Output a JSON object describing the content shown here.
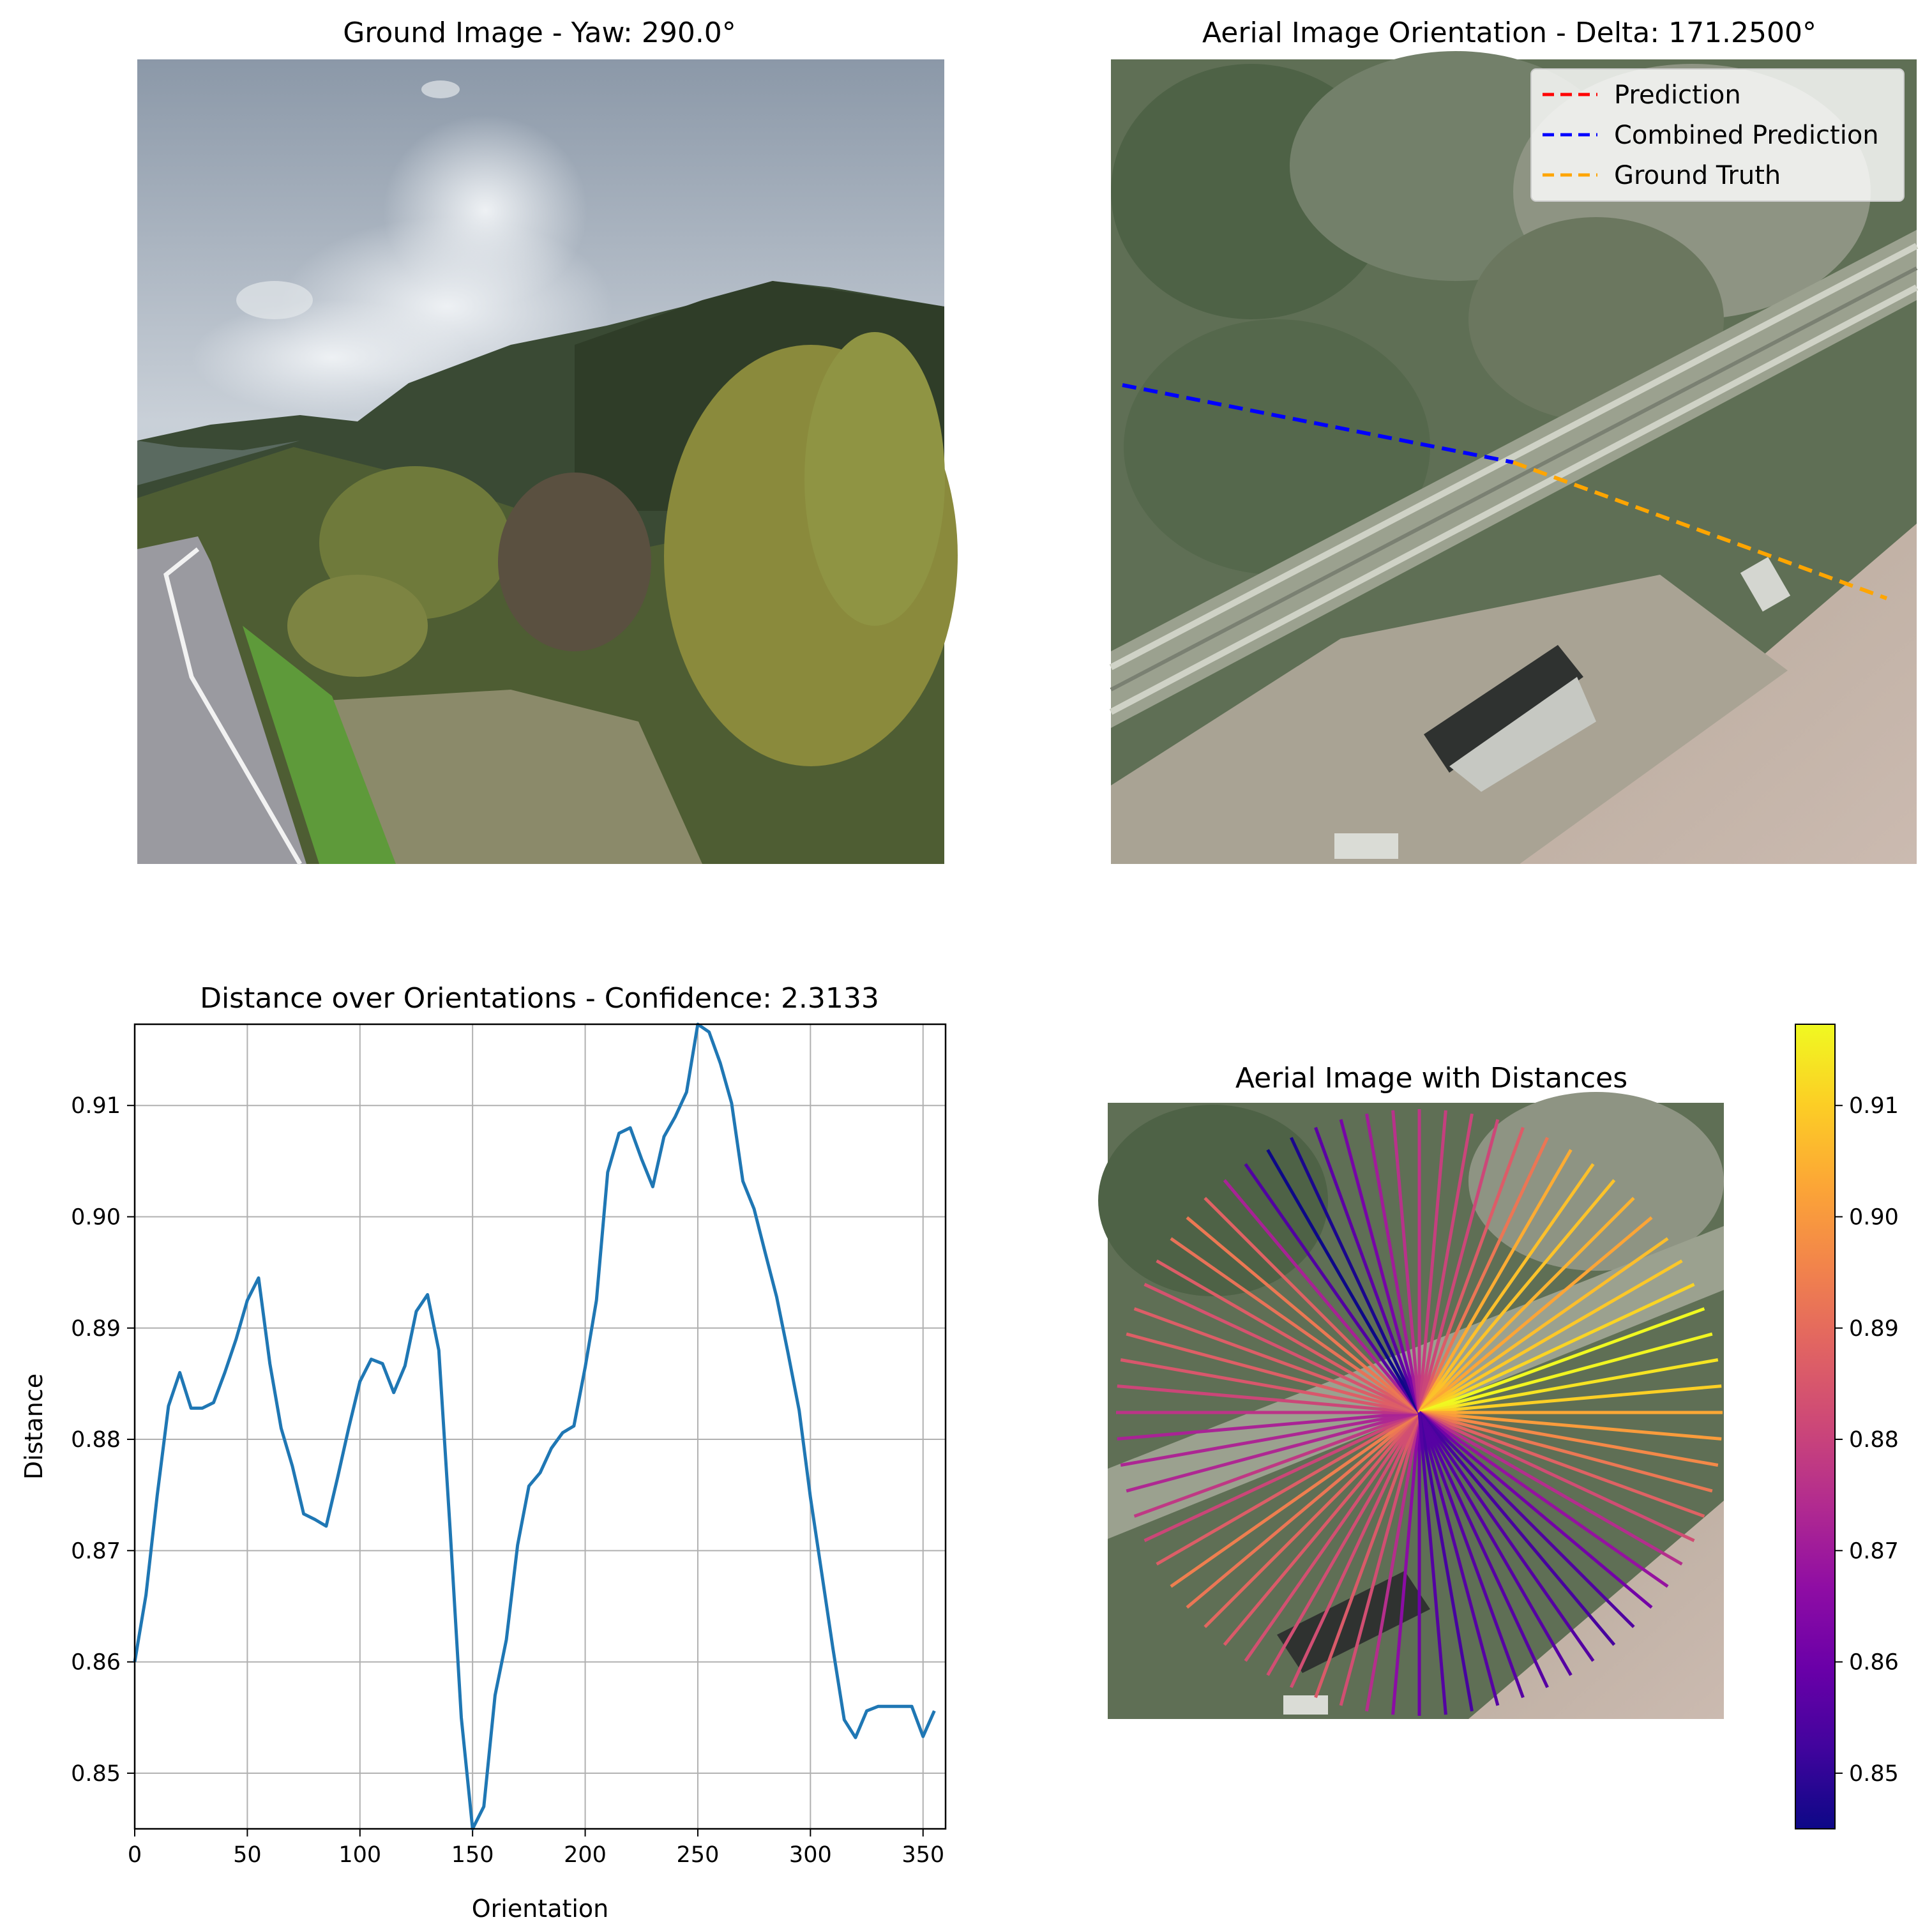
{
  "panels": {
    "ground": {
      "title": "Ground Image - Yaw: 290.0°"
    },
    "aerial": {
      "title": "Aerial Image Orientation - Delta: 171.2500°",
      "legend": [
        {
          "label": "Prediction",
          "color": "#ff0000"
        },
        {
          "label": "Combined Prediction",
          "color": "#0000ff"
        },
        {
          "label": "Ground Truth",
          "color": "#ffa500"
        }
      ]
    },
    "distances": {
      "title": "Aerial Image with Distances"
    }
  },
  "chart_data": [
    {
      "type": "line",
      "title": "Distance over Orientations - Confidence: 2.3133",
      "xlabel": "Orientation",
      "ylabel": "Distance",
      "xlim": [
        0,
        360
      ],
      "ylim": [
        0.845,
        0.9173
      ],
      "xticks": [
        "0",
        "50",
        "100",
        "150",
        "200",
        "250",
        "300",
        "350"
      ],
      "yticks": [
        "0.85",
        "0.86",
        "0.87",
        "0.88",
        "0.89",
        "0.90",
        "0.91"
      ],
      "grid": true,
      "color": "#1f77b4",
      "x": [
        0,
        5,
        10,
        15,
        20,
        25,
        30,
        35,
        40,
        45,
        50,
        55,
        60,
        65,
        70,
        75,
        80,
        85,
        90,
        95,
        100,
        105,
        110,
        115,
        120,
        125,
        130,
        135,
        140,
        145,
        150,
        155,
        160,
        165,
        170,
        175,
        180,
        185,
        190,
        195,
        200,
        205,
        210,
        215,
        220,
        225,
        230,
        235,
        240,
        245,
        250,
        255,
        260,
        265,
        270,
        275,
        280,
        285,
        290,
        295,
        300,
        305,
        310,
        315,
        320,
        325,
        330,
        335,
        340,
        345,
        350,
        355
      ],
      "y": [
        0.86,
        0.866,
        0.875,
        0.883,
        0.886,
        0.8828,
        0.8828,
        0.8833,
        0.886,
        0.889,
        0.8925,
        0.8945,
        0.8868,
        0.881,
        0.8776,
        0.8733,
        0.8728,
        0.8722,
        0.8765,
        0.881,
        0.8852,
        0.8872,
        0.8868,
        0.8842,
        0.8866,
        0.8915,
        0.893,
        0.888,
        0.872,
        0.855,
        0.845,
        0.847,
        0.857,
        0.862,
        0.8705,
        0.8758,
        0.877,
        0.8792,
        0.8806,
        0.8812,
        0.8865,
        0.8925,
        0.904,
        0.9075,
        0.908,
        0.9052,
        0.9027,
        0.9072,
        0.909,
        0.9112,
        0.9173,
        0.9166,
        0.9138,
        0.9102,
        0.9032,
        0.9007,
        0.8967,
        0.8928,
        0.8878,
        0.8826,
        0.8748,
        0.868,
        0.8612,
        0.8548,
        0.8532,
        0.8556,
        0.856,
        0.856,
        0.856,
        0.856,
        0.8533,
        0.8556
      ]
    },
    {
      "type": "heatmap",
      "colorbar": {
        "colormap": "plasma",
        "vmin": 0.845,
        "vmax": 0.9173,
        "ticks": [
          "0.85",
          "0.86",
          "0.87",
          "0.88",
          "0.89",
          "0.90",
          "0.91"
        ]
      }
    }
  ]
}
